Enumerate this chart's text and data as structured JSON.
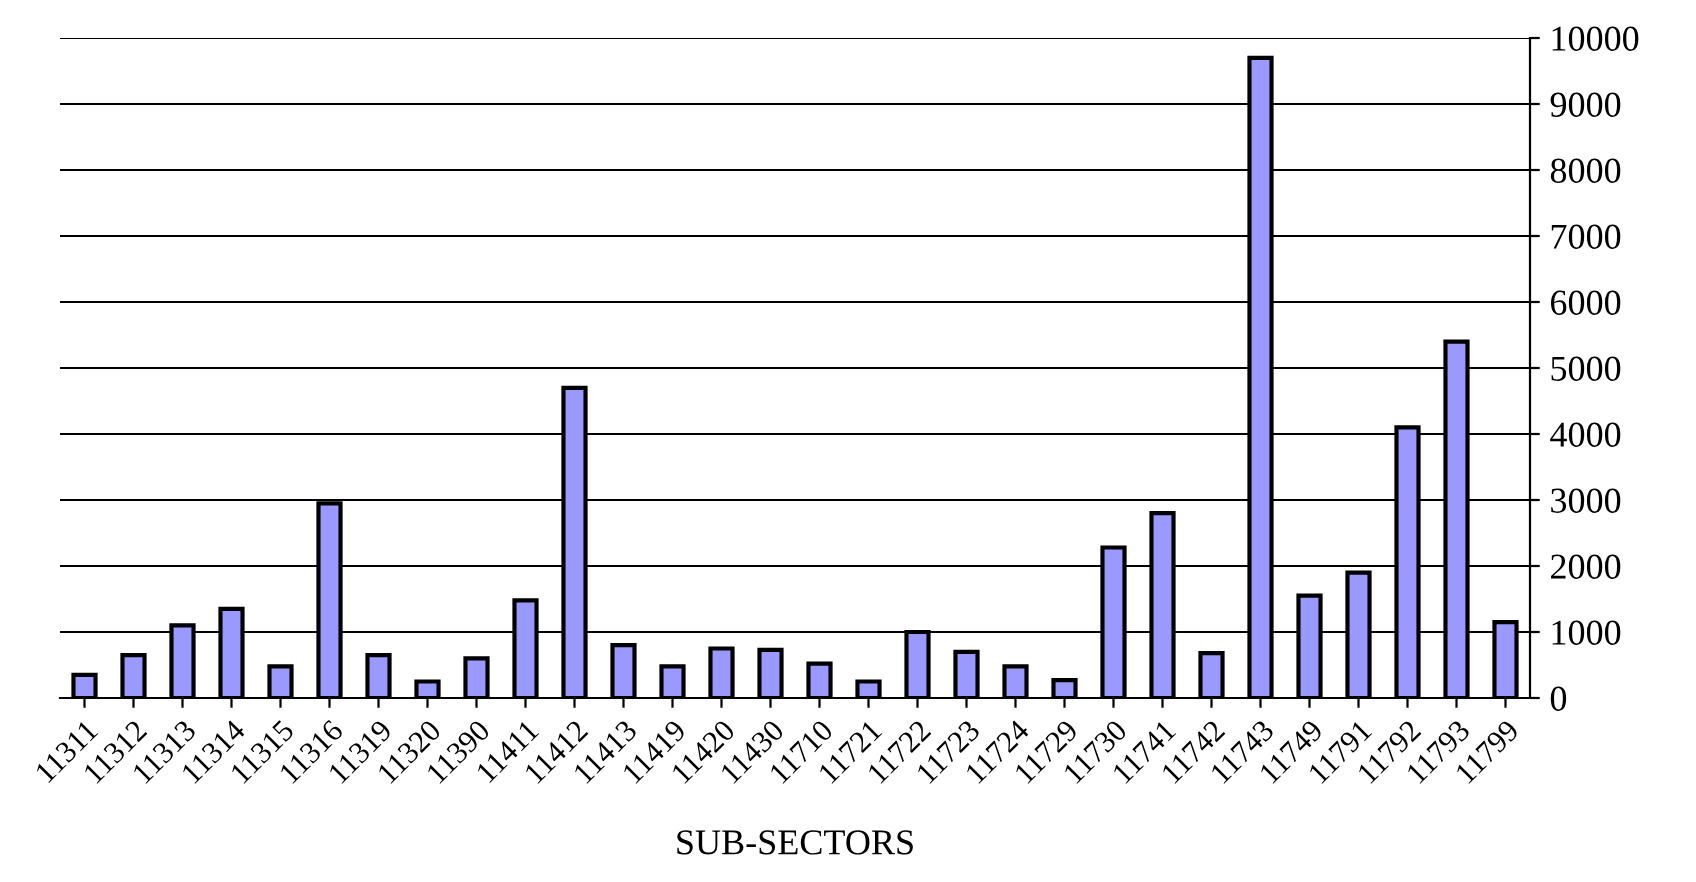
{
  "chart_data": {
    "type": "bar",
    "xlabel": "SUB-SECTORS",
    "categories": [
      "11311",
      "11312",
      "11313",
      "11314",
      "11315",
      "11316",
      "11319",
      "11320",
      "11390",
      "11411",
      "11412",
      "11413",
      "11419",
      "11420",
      "11430",
      "11710",
      "11721",
      "11722",
      "11723",
      "11724",
      "11729",
      "11730",
      "11741",
      "11742",
      "11743",
      "11749",
      "11791",
      "11792",
      "11793",
      "11799"
    ],
    "values": [
      350,
      650,
      1100,
      1350,
      480,
      2950,
      650,
      250,
      600,
      1480,
      4700,
      800,
      480,
      750,
      730,
      520,
      250,
      1000,
      700,
      480,
      270,
      2280,
      2800,
      680,
      9700,
      1550,
      1900,
      4100,
      5400,
      1150
    ],
    "color": "#9999ff",
    "ylim": [
      0,
      10000
    ],
    "yticks": [
      0,
      1000,
      2000,
      3000,
      4000,
      5000,
      6000,
      7000,
      8000,
      9000,
      10000
    ],
    "grid": "y"
  }
}
